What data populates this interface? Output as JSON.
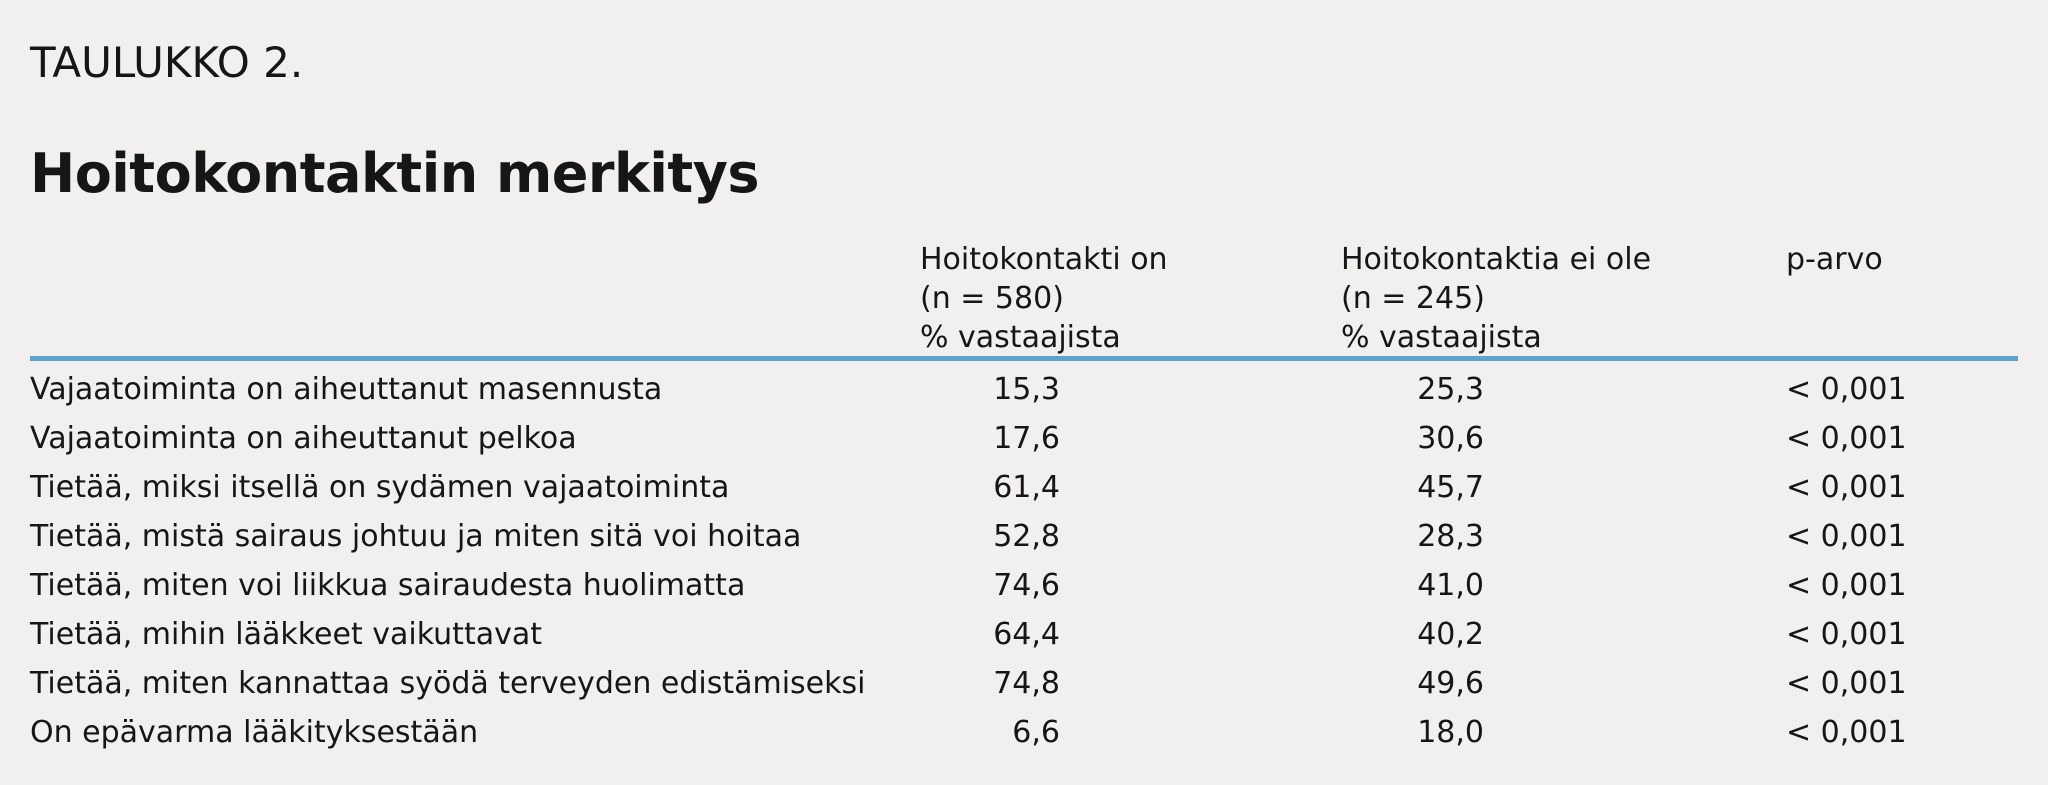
{
  "table_label": "TAULUKKO 2.",
  "title": "Hoitokontaktin merkitys",
  "columns": [
    {
      "lines": [
        "Hoitokontakti on",
        "(n = 580)",
        "% vastaajista"
      ]
    },
    {
      "lines": [
        "Hoitokontaktia ei ole",
        "(n = 245)",
        "% vastaajista"
      ]
    },
    {
      "lines": [
        "p-arvo"
      ]
    }
  ],
  "rows": [
    {
      "label": "Vajaatoiminta on aiheuttanut masennusta",
      "with_contact": "15,3",
      "without_contact": "25,3",
      "p": "< 0,001"
    },
    {
      "label": "Vajaatoiminta on aiheuttanut pelkoa",
      "with_contact": "17,6",
      "without_contact": "30,6",
      "p": "< 0,001"
    },
    {
      "label": "Tietää, miksi itsellä on sydämen vajaatoiminta",
      "with_contact": "61,4",
      "without_contact": "45,7",
      "p": "< 0,001"
    },
    {
      "label": "Tietää, mistä sairaus johtuu ja miten sitä voi hoitaa",
      "with_contact": "52,8",
      "without_contact": "28,3",
      "p": "< 0,001"
    },
    {
      "label": "Tietää, miten voi liikkua sairaudesta huolimatta",
      "with_contact": "74,6",
      "without_contact": "41,0",
      "p": "< 0,001"
    },
    {
      "label": "Tietää, mihin lääkkeet vaikuttavat",
      "with_contact": "64,4",
      "without_contact": "40,2",
      "p": "< 0,001"
    },
    {
      "label": "Tietää, miten kannattaa syödä terveyden edistämiseksi",
      "with_contact": "74,8",
      "without_contact": "49,6",
      "p": "< 0,001"
    },
    {
      "label": "On epävarma lääkityksestään",
      "with_contact": "6,6",
      "without_contact": "18,0",
      "p": "< 0,001"
    }
  ],
  "colors": {
    "background": "#f2f0ee",
    "text": "#161616",
    "rule": "#5ea2d3"
  }
}
